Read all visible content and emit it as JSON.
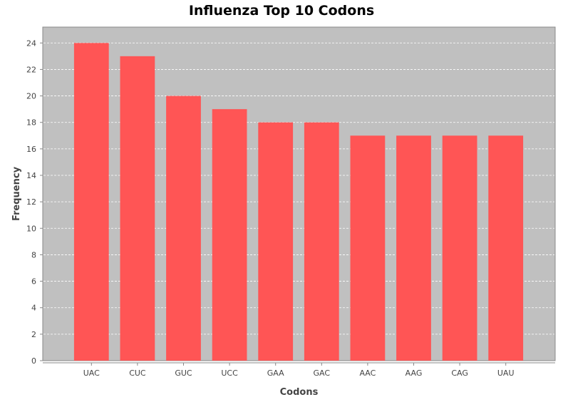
{
  "chart_data": {
    "type": "bar",
    "title": "Influenza Top 10 Codons",
    "xlabel": "Codons",
    "ylabel": "Frequency",
    "categories": [
      "UAC",
      "CUC",
      "GUC",
      "UCC",
      "GAA",
      "GAC",
      "AAC",
      "AAG",
      "CAG",
      "UAU"
    ],
    "values": [
      24,
      23,
      20,
      19,
      18,
      18,
      17,
      17,
      17,
      17
    ],
    "ylim": [
      0,
      25.2
    ],
    "yticks": [
      "0",
      "2",
      "4",
      "6",
      "8",
      "10",
      "12",
      "14",
      "16",
      "18",
      "20",
      "22",
      "24"
    ],
    "grid": true,
    "legend": "none"
  },
  "colors": {
    "bar": "#ff5555",
    "plot_background": "#c0c0c0",
    "gridline": "#ffffff"
  }
}
